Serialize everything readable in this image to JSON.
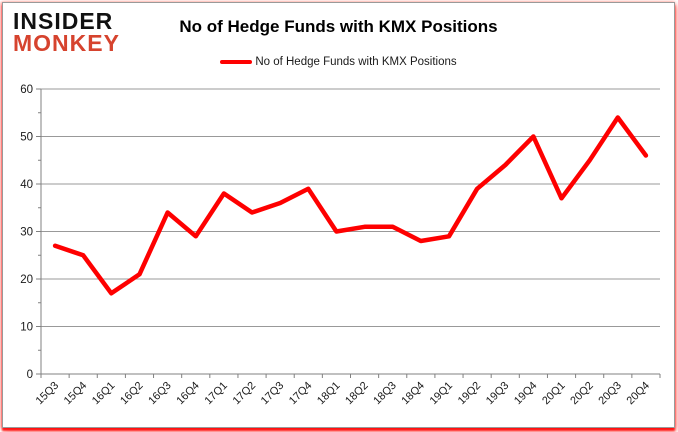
{
  "logo": {
    "line1": "INSIDER",
    "line2": "MONKEY",
    "line2_color": "#d6432e",
    "line1_color": "#111111"
  },
  "header": {
    "title": "No of Hedge Funds with KMX Positions"
  },
  "legend": {
    "label": "No of Hedge Funds with KMX Positions",
    "line_color": "#fe0000"
  },
  "chart_data": {
    "type": "line",
    "title": "No of Hedge Funds with KMX Positions",
    "categories": [
      "15Q3",
      "15Q4",
      "16Q1",
      "16Q2",
      "16Q3",
      "16Q4",
      "17Q1",
      "17Q2",
      "17Q3",
      "17Q4",
      "18Q1",
      "18Q2",
      "18Q3",
      "18Q4",
      "19Q1",
      "19Q2",
      "19Q3",
      "19Q4",
      "20Q1",
      "20Q2",
      "20Q3",
      "20Q4"
    ],
    "series": [
      {
        "name": "No of Hedge Funds with KMX Positions",
        "color": "#fe0000",
        "values": [
          27,
          25,
          17,
          21,
          34,
          29,
          38,
          34,
          36,
          39,
          30,
          31,
          31,
          28,
          29,
          39,
          44,
          50,
          37,
          45,
          54,
          46
        ]
      }
    ],
    "xlabel": "",
    "ylabel": "",
    "ylim": [
      0,
      60
    ],
    "ytick_interval": 10,
    "yticks": [
      0,
      10,
      20,
      30,
      40,
      50,
      60
    ],
    "grid": "horizontal",
    "legend_position": "top",
    "x_label_rotation": -45
  },
  "colors": {
    "gridline": "#999999",
    "axis": "#808080",
    "tick_label": "#1a1a1a",
    "frame_border": "#9a9a9a",
    "frame_glow": "#ff0000",
    "background": "#ffffff"
  }
}
